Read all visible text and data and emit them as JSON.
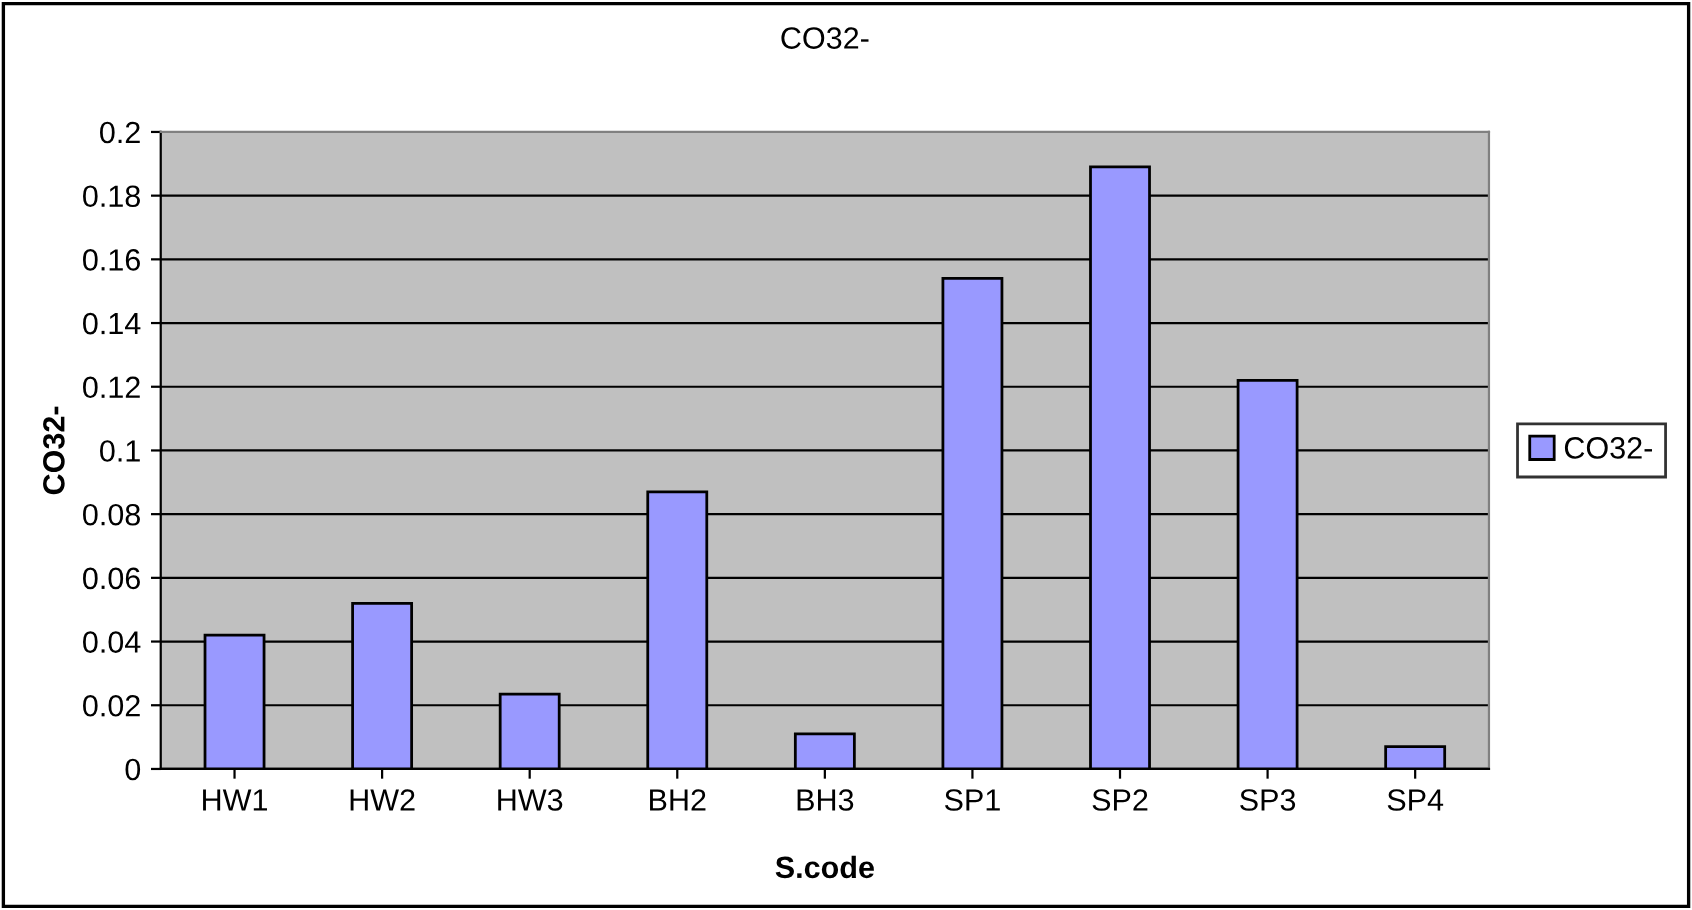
{
  "chart_data": {
    "type": "bar",
    "title": "CO32-",
    "xlabel": "S.code",
    "ylabel": "CO32-",
    "categories": [
      "HW1",
      "HW2",
      "HW3",
      "BH2",
      "BH3",
      "SP1",
      "SP2",
      "SP3",
      "SP4"
    ],
    "series": [
      {
        "name": "CO32-",
        "color": "#9999ff",
        "values": [
          0.042,
          0.052,
          0.0235,
          0.087,
          0.011,
          0.154,
          0.189,
          0.122,
          0.007
        ]
      }
    ],
    "ylim": [
      0,
      0.2
    ],
    "yticks": [
      0,
      0.02,
      0.04,
      0.06,
      0.08,
      0.1,
      0.12,
      0.14,
      0.16,
      0.18,
      0.2
    ],
    "grid": "y",
    "legend": "right"
  }
}
